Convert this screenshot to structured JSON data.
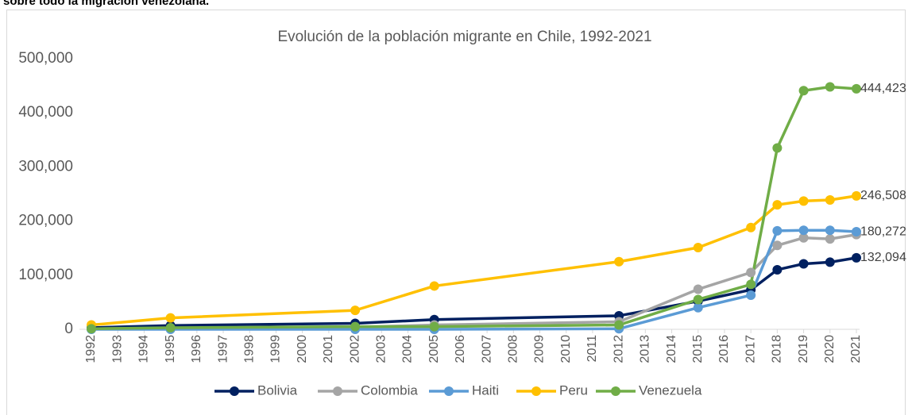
{
  "heading": "sobre todo la migración venezolana.",
  "chart_data": {
    "type": "line",
    "title": "Evolución de la población migrante en Chile, 1992-2021",
    "x": [
      1992,
      1995,
      2002,
      2005,
      2012,
      2015,
      2017,
      2018,
      2019,
      2020,
      2021
    ],
    "xlim": [
      1992,
      2021
    ],
    "xticks": [
      1992,
      1993,
      1994,
      1995,
      1996,
      1997,
      1998,
      1999,
      2000,
      2001,
      2002,
      2003,
      2004,
      2005,
      2006,
      2007,
      2008,
      2009,
      2010,
      2011,
      2012,
      2013,
      2014,
      2015,
      2016,
      2017,
      2018,
      2019,
      2020,
      2021
    ],
    "ylim": [
      0,
      500000
    ],
    "yticks": [
      0,
      {
        "value": 100000,
        "label": "100,000"
      },
      {
        "value": 200000,
        "label": "200,000"
      },
      {
        "value": 300000,
        "label": "300,000"
      },
      {
        "value": 400000,
        "label": "400,000"
      },
      {
        "value": 500000,
        "label": "500,000"
      }
    ],
    "grid": false,
    "legend": "bottom",
    "series": [
      {
        "name": "Bolivia",
        "color": "#002060",
        "values": [
          3000,
          7000,
          11000,
          18000,
          25000,
          52000,
          73000,
          110000,
          121000,
          124000,
          132094
        ],
        "value_labels": [
          null,
          null,
          null,
          null,
          null,
          null,
          null,
          null,
          null,
          null,
          "132,094"
        ]
      },
      {
        "name": "Colombia",
        "color": "#a5a5a5",
        "values": [
          1000,
          2000,
          4000,
          8000,
          14000,
          74000,
          105000,
          155000,
          169000,
          167000,
          175000
        ]
      },
      {
        "name": "Haiti",
        "color": "#5b9bd5",
        "values": [
          0,
          0,
          0,
          0,
          1000,
          40000,
          63000,
          182000,
          183000,
          183000,
          180272
        ],
        "value_labels": [
          null,
          null,
          null,
          null,
          null,
          null,
          null,
          null,
          null,
          null,
          "180,272"
        ]
      },
      {
        "name": "Peru",
        "color": "#ffc000",
        "values": [
          8000,
          21000,
          35000,
          80000,
          125000,
          151000,
          188000,
          230000,
          237000,
          239000,
          246508
        ],
        "value_labels": [
          null,
          null,
          null,
          null,
          null,
          null,
          null,
          null,
          null,
          null,
          "246,508"
        ]
      },
      {
        "name": "Venezuela",
        "color": "#70ad47",
        "values": [
          1000,
          3000,
          5000,
          5000,
          8000,
          55000,
          83000,
          335000,
          441000,
          448000,
          444423
        ],
        "value_labels": [
          null,
          null,
          null,
          null,
          null,
          null,
          null,
          null,
          null,
          null,
          "444,423"
        ]
      }
    ]
  }
}
